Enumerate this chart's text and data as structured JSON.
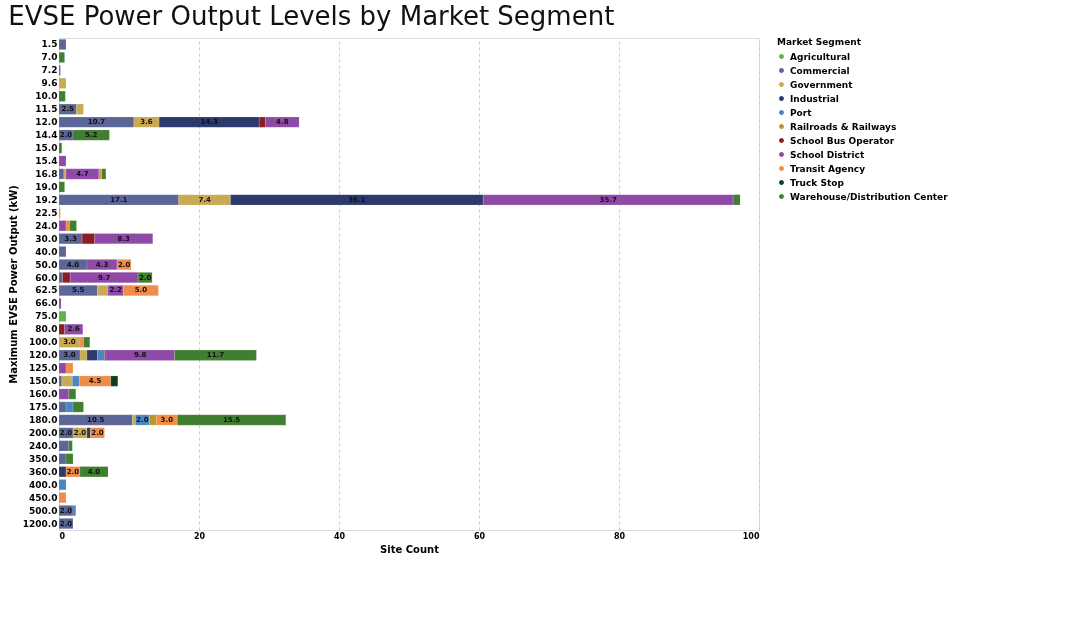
{
  "chart_data": {
    "type": "bar",
    "orientation": "horizontal",
    "stacked": true,
    "title": "EVSE Power Output Levels by Market Segment",
    "xlabel": "Site Count",
    "ylabel": "Maximum EVSE Power Output (kW)",
    "legend_title": "Market Segment",
    "categories": [
      "1.5",
      "7.0",
      "7.2",
      "9.6",
      "10.0",
      "11.5",
      "12.0",
      "14.4",
      "15.0",
      "15.4",
      "16.8",
      "19.0",
      "19.2",
      "22.5",
      "24.0",
      "30.0",
      "40.0",
      "50.0",
      "60.0",
      "62.5",
      "66.0",
      "75.0",
      "80.0",
      "100.0",
      "120.0",
      "125.0",
      "150.0",
      "160.0",
      "175.0",
      "180.0",
      "200.0",
      "240.0",
      "350.0",
      "360.0",
      "400.0",
      "450.0",
      "500.0",
      "1200.0"
    ],
    "xlim": [
      0,
      100
    ],
    "xticks": [
      0,
      20,
      40,
      60,
      80,
      100
    ],
    "grid": "x",
    "legend": "right",
    "series": [
      {
        "name": "Agricultural",
        "color": "#5cb545",
        "values": [
          null,
          null,
          null,
          null,
          null,
          null,
          null,
          null,
          null,
          null,
          null,
          null,
          null,
          null,
          null,
          null,
          null,
          null,
          null,
          null,
          null,
          1.0,
          null,
          null,
          null,
          null,
          null,
          null,
          null,
          null,
          null,
          null,
          null,
          null,
          null,
          null,
          null,
          null
        ]
      },
      {
        "name": "Commercial",
        "color": "#5b6596",
        "values": [
          1.0,
          null,
          0.2,
          null,
          null,
          2.5,
          10.7,
          2.0,
          null,
          null,
          0.7,
          null,
          17.1,
          null,
          null,
          3.3,
          1.0,
          4.0,
          0.5,
          5.5,
          null,
          null,
          null,
          null,
          3.0,
          null,
          0.4,
          null,
          1.0,
          10.5,
          2.0,
          1.4,
          1.0,
          null,
          null,
          null,
          2.0,
          2.0
        ],
        "value_labels": [
          null,
          null,
          null,
          null,
          null,
          "2.5",
          "10.7",
          "2.0",
          null,
          null,
          null,
          null,
          "17.1",
          null,
          null,
          "3.3",
          null,
          "4.0",
          null,
          "5.5",
          null,
          null,
          null,
          null,
          "3.0",
          null,
          null,
          null,
          null,
          "10.5",
          "2.0",
          null,
          null,
          null,
          null,
          null,
          "2.0",
          "2.0"
        ]
      },
      {
        "name": "Government",
        "color": "#c9aa52",
        "values": [
          null,
          null,
          null,
          1.0,
          null,
          1.0,
          3.6,
          null,
          null,
          null,
          0.3,
          null,
          7.4,
          0.2,
          null,
          null,
          null,
          null,
          null,
          1.5,
          null,
          null,
          null,
          3.0,
          1.0,
          null,
          1.5,
          null,
          null,
          0.4,
          2.0,
          null,
          null,
          null,
          null,
          null,
          null,
          null
        ],
        "value_labels": [
          null,
          null,
          null,
          null,
          null,
          null,
          "3.6",
          null,
          null,
          null,
          null,
          null,
          "7.4",
          null,
          null,
          null,
          null,
          null,
          null,
          null,
          null,
          null,
          null,
          "3.0",
          null,
          null,
          null,
          null,
          null,
          null,
          "2.0",
          null,
          null,
          null,
          null,
          null,
          null,
          null
        ]
      },
      {
        "name": "Industrial",
        "color": "#2b3a6b",
        "values": [
          null,
          null,
          null,
          null,
          null,
          null,
          14.3,
          null,
          null,
          null,
          null,
          null,
          36.1,
          null,
          null,
          null,
          null,
          null,
          null,
          null,
          null,
          null,
          null,
          null,
          1.5,
          null,
          null,
          null,
          null,
          null,
          0.5,
          null,
          null,
          1.0,
          null,
          null,
          null,
          null
        ],
        "value_labels": [
          null,
          null,
          null,
          null,
          null,
          null,
          "14.3",
          null,
          null,
          null,
          null,
          null,
          "36.1",
          null,
          null,
          null,
          null,
          null,
          null,
          null,
          null,
          null,
          null,
          null,
          null,
          null,
          null,
          null,
          null,
          null,
          null,
          null,
          null,
          null,
          null,
          null,
          null,
          null
        ]
      },
      {
        "name": "Port",
        "color": "#4a86c0",
        "values": [
          null,
          null,
          null,
          null,
          null,
          null,
          null,
          null,
          null,
          null,
          null,
          null,
          null,
          null,
          null,
          null,
          null,
          null,
          null,
          null,
          null,
          null,
          null,
          null,
          1.0,
          null,
          1.0,
          null,
          1.0,
          2.0,
          null,
          null,
          null,
          null,
          1.0,
          null,
          0.4,
          null
        ],
        "value_labels": [
          null,
          null,
          null,
          null,
          null,
          null,
          null,
          null,
          null,
          null,
          null,
          null,
          null,
          null,
          null,
          null,
          null,
          null,
          null,
          null,
          null,
          null,
          null,
          null,
          null,
          null,
          null,
          null,
          null,
          "2.0",
          null,
          null,
          null,
          null,
          null,
          null,
          null,
          null
        ]
      },
      {
        "name": "Railroads & Railways",
        "color": "#b8962e",
        "values": [
          null,
          null,
          null,
          null,
          null,
          null,
          null,
          null,
          null,
          null,
          null,
          null,
          null,
          null,
          null,
          null,
          null,
          null,
          null,
          null,
          null,
          null,
          null,
          null,
          null,
          null,
          null,
          null,
          null,
          1.0,
          null,
          null,
          null,
          null,
          null,
          null,
          null,
          null
        ]
      },
      {
        "name": "School Bus Operator",
        "color": "#8b1e24",
        "values": [
          null,
          null,
          null,
          null,
          null,
          null,
          0.9,
          null,
          null,
          null,
          null,
          null,
          null,
          null,
          null,
          1.8,
          null,
          null,
          1.1,
          null,
          null,
          null,
          0.8,
          null,
          0.2,
          null,
          null,
          null,
          null,
          null,
          null,
          null,
          null,
          null,
          null,
          null,
          null,
          null
        ]
      },
      {
        "name": "School District",
        "color": "#8e4aa6",
        "values": [
          null,
          null,
          null,
          null,
          null,
          null,
          4.8,
          null,
          null,
          1.0,
          4.7,
          null,
          35.7,
          null,
          1.0,
          8.3,
          null,
          4.3,
          9.7,
          2.2,
          0.3,
          null,
          2.6,
          null,
          9.8,
          1.0,
          null,
          1.4,
          null,
          null,
          null,
          null,
          null,
          null,
          null,
          null,
          null,
          null
        ],
        "value_labels": [
          null,
          null,
          null,
          null,
          null,
          null,
          "4.8",
          null,
          null,
          null,
          "4.7",
          null,
          "35.7",
          null,
          null,
          "8.3",
          null,
          "4.3",
          "9.7",
          "2.2",
          null,
          null,
          "2.6",
          null,
          "9.8",
          null,
          null,
          null,
          null,
          null,
          null,
          null,
          null,
          null,
          null,
          null,
          null,
          null
        ]
      },
      {
        "name": "Transit Agency",
        "color": "#f08c48",
        "values": [
          null,
          null,
          null,
          null,
          null,
          null,
          null,
          null,
          null,
          null,
          0.4,
          null,
          null,
          null,
          0.5,
          null,
          null,
          2.0,
          null,
          5.0,
          null,
          null,
          null,
          0.5,
          null,
          1.0,
          4.5,
          null,
          null,
          3.0,
          2.0,
          null,
          null,
          2.0,
          null,
          1.0,
          null,
          null
        ],
        "value_labels": [
          null,
          null,
          null,
          null,
          null,
          null,
          null,
          null,
          null,
          null,
          null,
          null,
          null,
          null,
          null,
          null,
          null,
          "2.0",
          null,
          "5.0",
          null,
          null,
          null,
          null,
          null,
          null,
          "4.5",
          null,
          null,
          "3.0",
          "2.0",
          null,
          null,
          "2.0",
          null,
          null,
          null,
          null
        ]
      },
      {
        "name": "Truck Stop",
        "color": "#0f3d1f",
        "values": [
          null,
          null,
          null,
          null,
          null,
          null,
          null,
          null,
          null,
          null,
          null,
          null,
          null,
          null,
          null,
          null,
          null,
          null,
          null,
          null,
          null,
          null,
          null,
          null,
          null,
          null,
          1.0,
          null,
          null,
          null,
          null,
          null,
          null,
          null,
          null,
          null,
          null,
          null
        ]
      },
      {
        "name": "Warehouse/Distribution Center",
        "color": "#3f7f2f",
        "values": [
          null,
          0.8,
          null,
          null,
          0.9,
          null,
          null,
          5.2,
          0.4,
          null,
          0.6,
          0.8,
          1.0,
          null,
          1.0,
          null,
          null,
          null,
          2.0,
          null,
          null,
          null,
          null,
          0.9,
          11.7,
          null,
          null,
          1.0,
          1.5,
          15.5,
          null,
          0.5,
          1.0,
          4.0,
          null,
          null,
          null,
          null
        ],
        "value_labels": [
          null,
          null,
          null,
          null,
          null,
          null,
          null,
          "5.2",
          null,
          null,
          null,
          null,
          null,
          null,
          null,
          null,
          null,
          null,
          "2.0",
          null,
          null,
          null,
          null,
          null,
          "11.7",
          null,
          null,
          null,
          null,
          "15.5",
          null,
          null,
          null,
          "4.0",
          null,
          null,
          null,
          null
        ]
      }
    ]
  }
}
